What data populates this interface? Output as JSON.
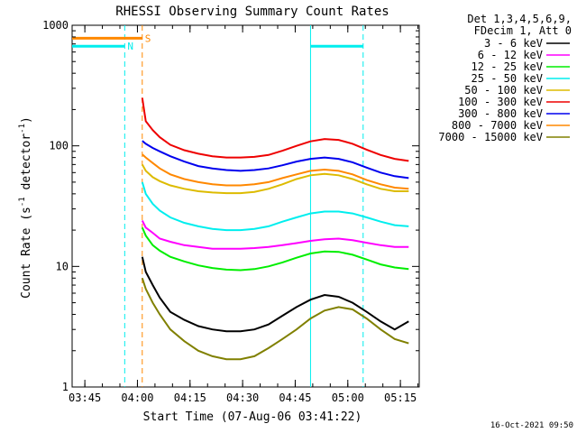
{
  "chart_data": {
    "type": "line",
    "title": "RHESSI Observing Summary Count Rates",
    "xlabel": "Start Time (07-Aug-06 03:41:22)",
    "ylabel_main": "Count Rate (s",
    "ylabel_sup1": "-1",
    "ylabel_mid": " detector",
    "ylabel_sup2": "-1",
    "ylabel_end": ")",
    "y_scale": "log",
    "ylim": [
      1,
      1000
    ],
    "xlim_minutes": [
      0,
      99
    ],
    "x_ticks": [
      {
        "label": "03:45",
        "minute": 3.63
      },
      {
        "label": "04:00",
        "minute": 18.63
      },
      {
        "label": "04:15",
        "minute": 33.63
      },
      {
        "label": "04:30",
        "minute": 48.63
      },
      {
        "label": "04:45",
        "minute": 63.63
      },
      {
        "label": "05:00",
        "minute": 78.63
      },
      {
        "label": "05:15",
        "minute": 93.63
      }
    ],
    "y_ticks": [
      {
        "label": "1",
        "value": 1
      },
      {
        "label": "10",
        "value": 10
      },
      {
        "label": "100",
        "value": 100
      },
      {
        "label": "1000",
        "value": 1000
      }
    ],
    "legend_header": [
      "Det 1,3,4,5,6,9,",
      "FDecim 1, Att 0"
    ],
    "legend_placement": "right",
    "series": [
      {
        "name": "3 - 6 keV",
        "color": "#000000",
        "x": [
          20,
          21,
          23,
          25,
          28,
          32,
          36,
          40,
          44,
          48,
          52,
          56,
          60,
          64,
          68,
          72,
          76,
          80,
          84,
          88,
          92,
          96
        ],
        "y": [
          12,
          9,
          7,
          5.5,
          4.2,
          3.6,
          3.2,
          3.0,
          2.9,
          2.9,
          3.0,
          3.3,
          3.9,
          4.6,
          5.3,
          5.8,
          5.6,
          5.0,
          4.2,
          3.5,
          3.0,
          3.5
        ]
      },
      {
        "name": "6 - 12 keV",
        "color": "#ff00ff",
        "x": [
          20,
          21,
          23,
          25,
          28,
          32,
          36,
          40,
          44,
          48,
          52,
          56,
          60,
          64,
          68,
          72,
          76,
          80,
          84,
          88,
          92,
          96
        ],
        "y": [
          24,
          21,
          19,
          17,
          16,
          15,
          14.5,
          14,
          14,
          14,
          14.2,
          14.5,
          15,
          15.6,
          16.3,
          16.8,
          17,
          16.5,
          15.7,
          15,
          14.5,
          14.5
        ]
      },
      {
        "name": "12 - 25 keV",
        "color": "#00ee00",
        "x": [
          20,
          21,
          23,
          25,
          28,
          32,
          36,
          40,
          44,
          48,
          52,
          56,
          60,
          64,
          68,
          72,
          76,
          80,
          84,
          88,
          92,
          96
        ],
        "y": [
          21,
          18,
          15,
          13.5,
          12,
          11,
          10.2,
          9.7,
          9.4,
          9.3,
          9.5,
          10,
          10.8,
          11.8,
          12.8,
          13.3,
          13.2,
          12.5,
          11.4,
          10.4,
          9.8,
          9.5
        ]
      },
      {
        "name": "25 - 50 keV",
        "color": "#00eeee",
        "x": [
          20,
          21,
          23,
          25,
          28,
          32,
          36,
          40,
          44,
          48,
          52,
          56,
          60,
          64,
          68,
          72,
          76,
          80,
          84,
          88,
          92,
          96
        ],
        "y": [
          50,
          40,
          33,
          29,
          25.5,
          23,
          21.5,
          20.5,
          20,
          20,
          20.5,
          21.5,
          23.5,
          25.5,
          27.5,
          28.5,
          28.5,
          27.5,
          25.5,
          23.5,
          22,
          21.5
        ]
      },
      {
        "name": "50 - 100 keV",
        "color": "#ddbb00",
        "x": [
          20,
          21,
          23,
          25,
          28,
          32,
          36,
          40,
          44,
          48,
          52,
          56,
          60,
          64,
          68,
          72,
          76,
          80,
          84,
          88,
          92,
          96
        ],
        "y": [
          70,
          62,
          55,
          51,
          47,
          44,
          42,
          41,
          40.5,
          40.5,
          41.5,
          44,
          48,
          53,
          57,
          58.5,
          57,
          53,
          48,
          44,
          42,
          42
        ]
      },
      {
        "name": "100 - 300 keV",
        "color": "#ee0000",
        "x": [
          20,
          21,
          23,
          25,
          28,
          32,
          36,
          40,
          44,
          48,
          52,
          56,
          60,
          64,
          68,
          72,
          76,
          80,
          84,
          88,
          92,
          96
        ],
        "y": [
          250,
          160,
          135,
          118,
          102,
          92,
          86,
          82,
          80,
          80,
          81,
          84,
          91,
          100,
          109,
          114,
          112,
          104,
          93,
          84,
          78,
          75
        ]
      },
      {
        "name": "300 - 800 keV",
        "color": "#0000ee",
        "x": [
          20,
          21,
          23,
          25,
          28,
          32,
          36,
          40,
          44,
          48,
          52,
          56,
          60,
          64,
          68,
          72,
          76,
          80,
          84,
          88,
          92,
          96
        ],
        "y": [
          110,
          104,
          96,
          90,
          82,
          74,
          68,
          65,
          63,
          62,
          63,
          65,
          69,
          74,
          78,
          80,
          78,
          73,
          66,
          60,
          56,
          54
        ]
      },
      {
        "name": "800 - 7000 keV",
        "color": "#ff8800",
        "x": [
          20,
          21,
          23,
          25,
          28,
          32,
          36,
          40,
          44,
          48,
          52,
          56,
          60,
          64,
          68,
          72,
          76,
          80,
          84,
          88,
          92,
          96
        ],
        "y": [
          85,
          80,
          72,
          65,
          58,
          53,
          50,
          48,
          47,
          47,
          48,
          50,
          54,
          58,
          62,
          63.5,
          62,
          58,
          52,
          48,
          45,
          44
        ]
      },
      {
        "name": "7000 - 15000 keV",
        "color": "#808000",
        "x": [
          20,
          21,
          23,
          25,
          28,
          32,
          36,
          40,
          44,
          48,
          52,
          56,
          60,
          64,
          68,
          72,
          76,
          80,
          84,
          88,
          92,
          96
        ],
        "y": [
          8,
          6.5,
          5,
          4,
          3,
          2.4,
          2.0,
          1.8,
          1.7,
          1.7,
          1.8,
          2.1,
          2.5,
          3.0,
          3.7,
          4.3,
          4.6,
          4.4,
          3.7,
          3.0,
          2.5,
          2.3
        ]
      }
    ],
    "annotations": [
      {
        "label": "S",
        "color": "#ff8800",
        "x_start": 0,
        "x_end": 20,
        "level": 780
      },
      {
        "label": "N",
        "color": "#00eeee",
        "x_start": 0,
        "x_end": 15,
        "level": 670
      }
    ],
    "cyan_bar_right": {
      "x_start": 68,
      "x_end": 83,
      "level": 670
    },
    "vlines": [
      {
        "minute": 15,
        "color": "#00eeee",
        "style": "dashed"
      },
      {
        "minute": 20,
        "color": "#ff8800",
        "style": "dashed"
      },
      {
        "minute": 68,
        "color": "#00eeee",
        "style": "solid"
      },
      {
        "minute": 83,
        "color": "#00eeee",
        "style": "dashed"
      }
    ],
    "grid": false
  },
  "timestamp": "16-Oct-2021 09:50"
}
